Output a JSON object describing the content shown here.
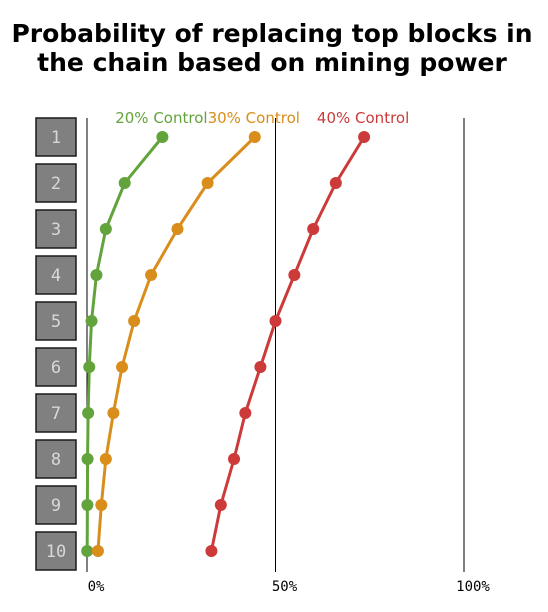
{
  "chart_data": {
    "type": "line",
    "title_lines": [
      "Probability of replacing top blocks in",
      "the chain based on mining power"
    ],
    "xlim": [
      0,
      100
    ],
    "x_ticks": [
      {
        "value": 0,
        "label": "0%"
      },
      {
        "value": 50,
        "label": "50%"
      },
      {
        "value": 100,
        "label": "100%"
      }
    ],
    "blocks": [
      "1",
      "2",
      "3",
      "4",
      "5",
      "6",
      "7",
      "8",
      "9",
      "10"
    ],
    "series": [
      {
        "name": "20% Control",
        "color": "#62a33c",
        "values": [
          20,
          10,
          5,
          2.5,
          1.2,
          0.6,
          0.3,
          0.15,
          0.1,
          0.05
        ]
      },
      {
        "name": "30% Control",
        "color": "#d98e1c",
        "values": [
          44.5,
          32,
          24,
          17,
          12.5,
          9.3,
          7,
          5,
          3.8,
          2.9
        ]
      },
      {
        "name": "40% Control",
        "color": "#cc3a3a",
        "values": [
          73.5,
          66,
          60,
          55,
          50,
          46,
          42,
          39,
          35.5,
          33
        ]
      }
    ]
  }
}
